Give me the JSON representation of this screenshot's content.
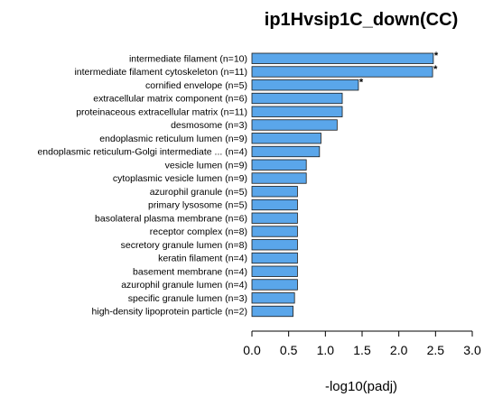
{
  "chart_data": {
    "type": "bar",
    "orientation": "horizontal",
    "title": "ip1Hvsip1C_down(CC)",
    "xlabel": "-log10(padj)",
    "ylabel": "",
    "xlim": [
      0,
      3.0
    ],
    "xticks": [
      "0.0",
      "0.5",
      "1.0",
      "1.5",
      "2.0",
      "2.5",
      "3.0"
    ],
    "bar_color": "#5aa6ea",
    "bar_stroke": "#1a1a1a",
    "grid": false,
    "categories": [
      "intermediate filament (n=10)",
      "intermediate filament cytoskeleton (n=11)",
      "cornified envelope (n=5)",
      "extracellular matrix component (n=6)",
      "proteinaceous extracellular matrix (n=11)",
      "desmosome (n=3)",
      "endoplasmic reticulum lumen (n=9)",
      "endoplasmic reticulum-Golgi intermediate ... (n=4)",
      "vesicle lumen (n=9)",
      "cytoplasmic vesicle lumen (n=9)",
      "azurophil granule (n=5)",
      "primary lysosome (n=5)",
      "basolateral plasma membrane (n=6)",
      "receptor complex (n=8)",
      "secretory granule lumen (n=8)",
      "keratin filament (n=4)",
      "basement membrane (n=4)",
      "azurophil granule lumen (n=4)",
      "specific granule lumen (n=3)",
      "high-density lipoprotein particle (n=2)"
    ],
    "values": [
      2.47,
      2.46,
      1.45,
      1.23,
      1.23,
      1.16,
      0.94,
      0.92,
      0.74,
      0.74,
      0.62,
      0.62,
      0.62,
      0.62,
      0.62,
      0.62,
      0.62,
      0.62,
      0.58,
      0.56
    ],
    "significance_marks": [
      "*",
      "*",
      "*",
      "",
      "",
      "",
      "",
      "",
      "",
      "",
      "",
      "",
      "",
      "",
      "",
      "",
      "",
      "",
      "",
      ""
    ]
  }
}
